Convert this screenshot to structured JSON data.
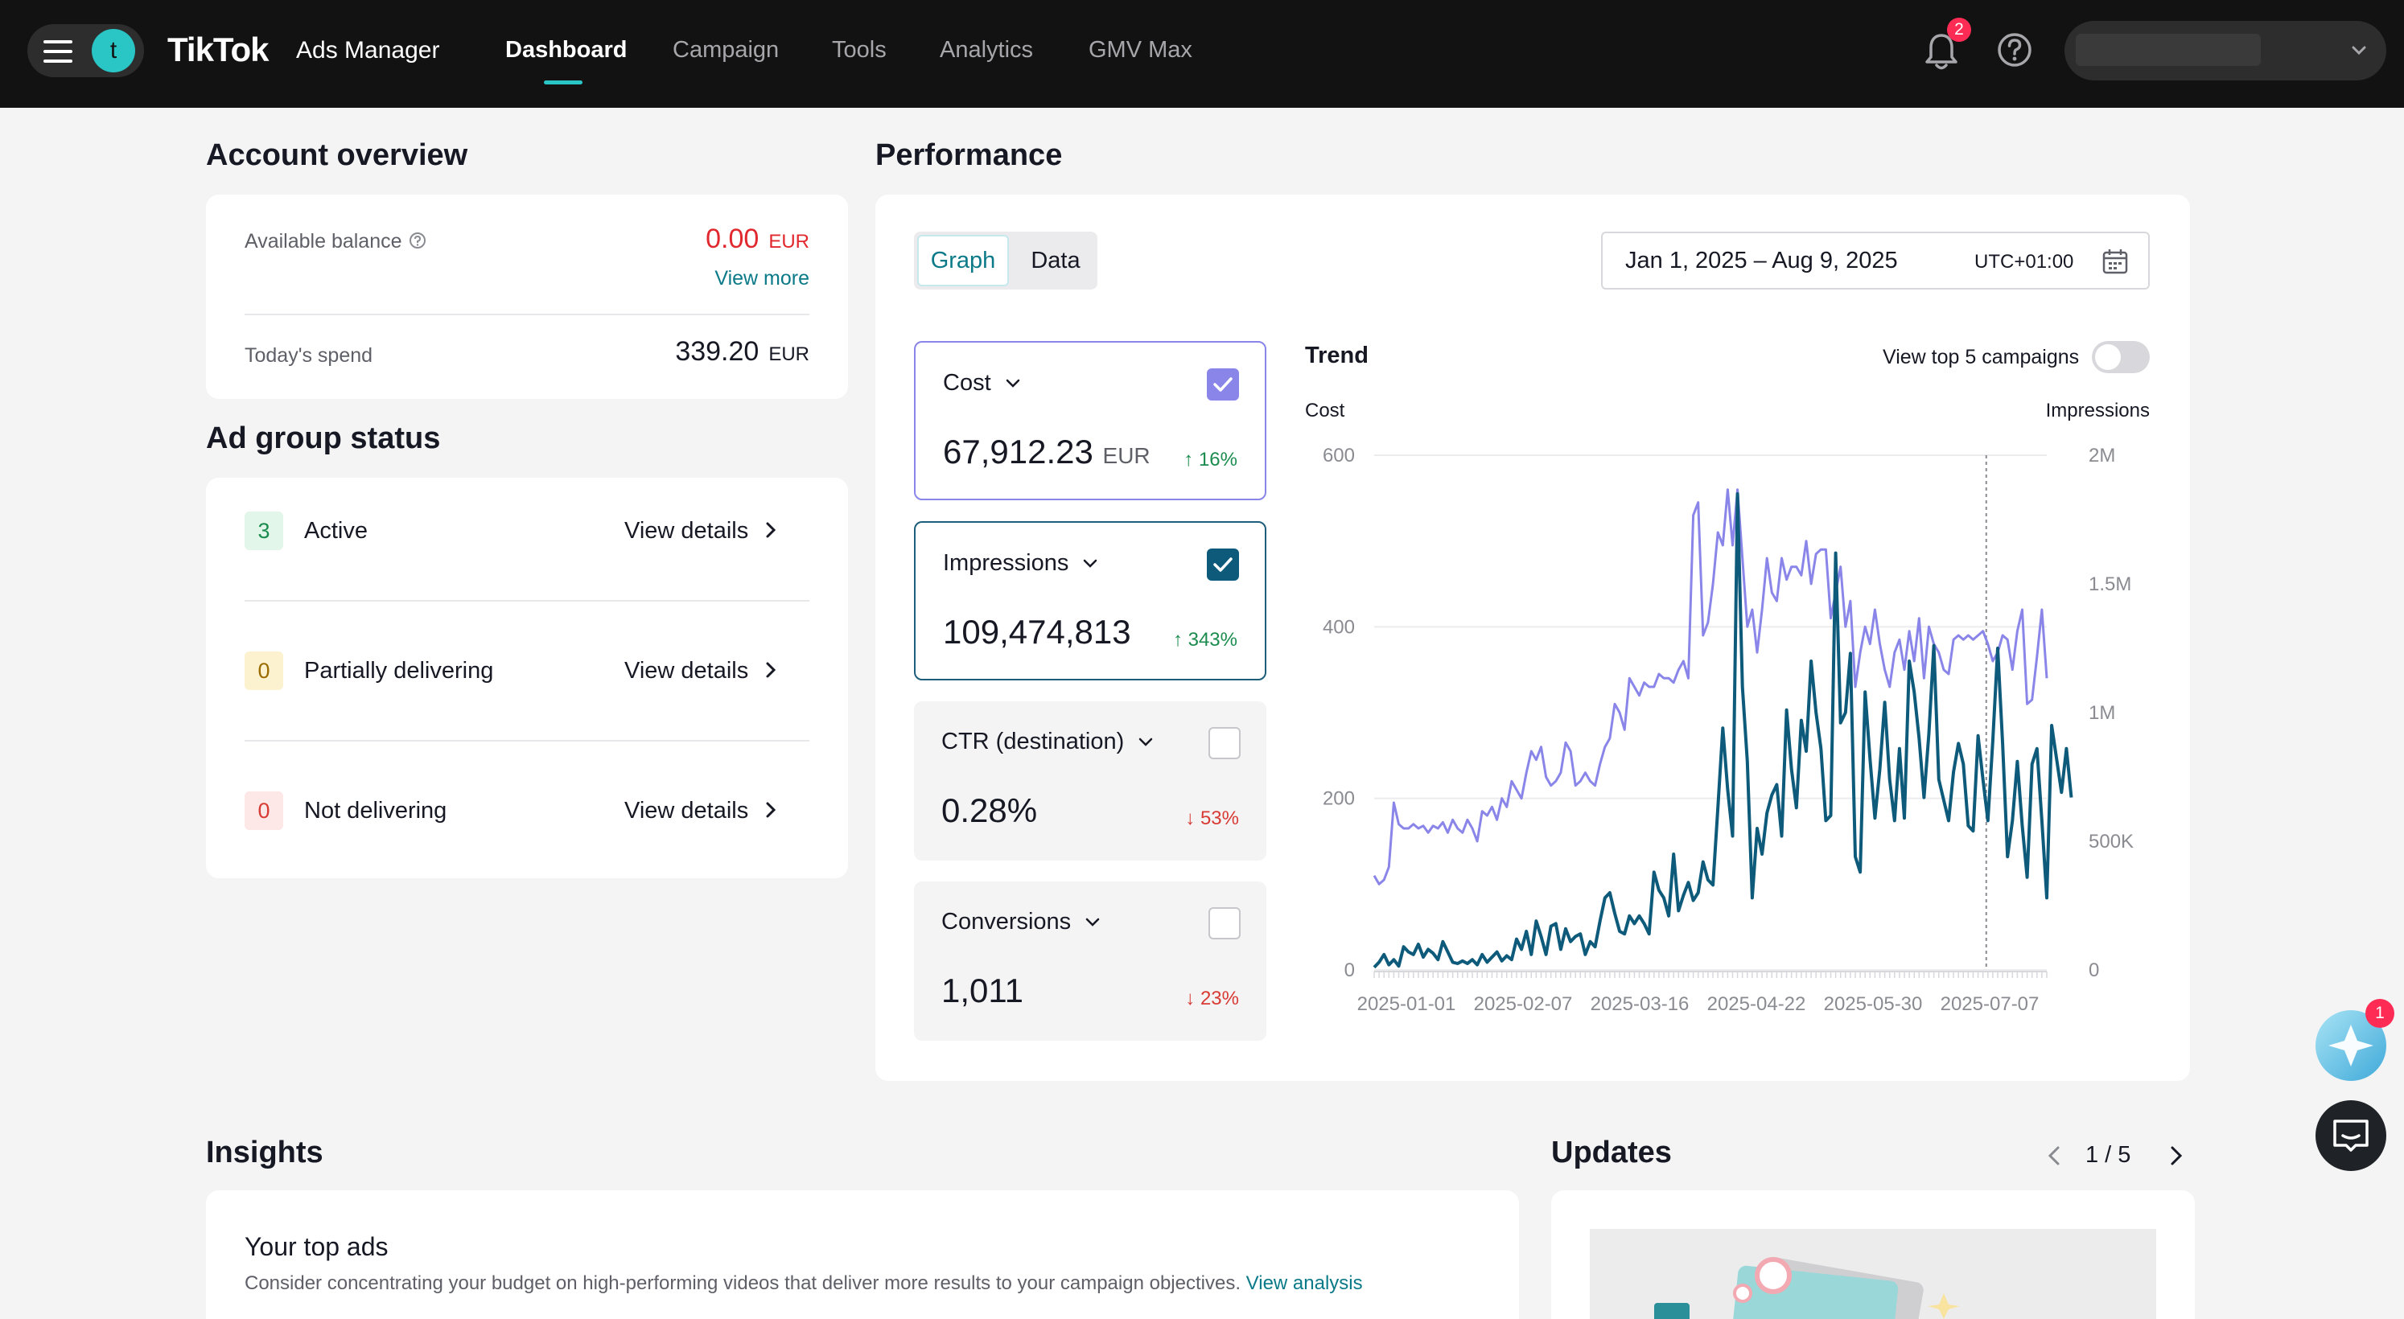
{
  "nav": {
    "avatar_letter": "t",
    "logo": "TikTok",
    "logo_sub": "Ads Manager",
    "items": [
      "Dashboard",
      "Campaign",
      "Tools",
      "Analytics",
      "GMV Max"
    ],
    "notification_count": "2"
  },
  "account_overview": {
    "title": "Account overview",
    "balance_label": "Available balance",
    "balance_value": "0.00",
    "balance_currency": "EUR",
    "view_more": "View more",
    "spend_label": "Today's spend",
    "spend_value": "339.20",
    "spend_currency": "EUR"
  },
  "ad_group_status": {
    "title": "Ad group status",
    "items": [
      {
        "count": "3",
        "label": "Active",
        "link": "View details"
      },
      {
        "count": "0",
        "label": "Partially delivering",
        "link": "View details"
      },
      {
        "count": "0",
        "label": "Not delivering",
        "link": "View details"
      }
    ]
  },
  "performance": {
    "title": "Performance",
    "tab_graph": "Graph",
    "tab_data": "Data",
    "date_range": "Jan 1, 2025 – Aug 9, 2025",
    "timezone": "UTC+01:00",
    "metrics": [
      {
        "name": "Cost",
        "value": "67,912.23",
        "unit": "EUR",
        "delta": "16%",
        "direction": "up",
        "checked": true
      },
      {
        "name": "Impressions",
        "value": "109,474,813",
        "unit": "",
        "delta": "343%",
        "direction": "up",
        "checked": true
      },
      {
        "name": "CTR (destination)",
        "value": "0.28%",
        "unit": "",
        "delta": "53%",
        "direction": "down",
        "checked": false
      },
      {
        "name": "Conversions",
        "value": "1,011",
        "unit": "",
        "delta": "23%",
        "direction": "down",
        "checked": false
      }
    ],
    "trend_title": "Trend",
    "top5_label": "View top 5 campaigns"
  },
  "chart_data": {
    "type": "line",
    "title": "Trend",
    "ylabel_left": "Cost",
    "ylabel_right": "Impressions",
    "ylim_left": [
      0,
      600
    ],
    "ylim_right": [
      0,
      2000000
    ],
    "left_ticks": [
      "0",
      "200",
      "400",
      "600"
    ],
    "right_ticks": [
      "0",
      "500K",
      "1M",
      "1.5M",
      "2M"
    ],
    "x_ticks": [
      "2025-01-01",
      "2025-02-07",
      "2025-03-16",
      "2025-04-22",
      "2025-05-30",
      "2025-07-07"
    ],
    "series": [
      {
        "name": "Cost",
        "axis": "left",
        "color": "#8a85e8",
        "values": [
          110,
          100,
          105,
          120,
          195,
          170,
          165,
          165,
          170,
          165,
          168,
          160,
          168,
          165,
          172,
          160,
          175,
          165,
          160,
          175,
          165,
          150,
          185,
          180,
          190,
          175,
          200,
          190,
          220,
          210,
          200,
          230,
          255,
          245,
          260,
          225,
          215,
          220,
          230,
          265,
          255,
          215,
          220,
          230,
          220,
          215,
          240,
          260,
          270,
          310,
          300,
          280,
          340,
          330,
          320,
          335,
          330,
          330,
          345,
          340,
          340,
          335,
          350,
          360,
          340,
          530,
          545,
          390,
          405,
          450,
          510,
          495,
          560,
          495,
          560,
          480,
          400,
          420,
          370,
          420,
          480,
          440,
          430,
          480,
          455,
          470,
          470,
          460,
          500,
          450,
          485,
          490,
          490,
          410,
          440,
          470,
          400,
          430,
          330,
          370,
          400,
          380,
          420,
          380,
          350,
          330,
          370,
          385,
          350,
          395,
          360,
          410,
          340,
          400,
          380,
          370,
          350,
          345,
          385,
          390,
          385,
          390,
          385,
          390,
          395,
          380,
          360,
          370,
          390,
          385,
          350,
          395,
          420,
          310,
          315,
          365,
          420,
          340
        ]
      },
      {
        "name": "Impressions",
        "axis": "right",
        "color": "#0e5a7a",
        "values": [
          10000,
          30000,
          60000,
          20000,
          40000,
          15000,
          90000,
          70000,
          60000,
          100000,
          50000,
          80000,
          65000,
          40000,
          110000,
          70000,
          30000,
          25000,
          35000,
          25000,
          40000,
          20000,
          60000,
          30000,
          50000,
          70000,
          35000,
          55000,
          40000,
          120000,
          80000,
          150000,
          60000,
          190000,
          130000,
          60000,
          170000,
          180000,
          80000,
          160000,
          110000,
          130000,
          140000,
          60000,
          110000,
          90000,
          190000,
          280000,
          300000,
          220000,
          150000,
          140000,
          210000,
          180000,
          210000,
          180000,
          140000,
          380000,
          310000,
          280000,
          210000,
          450000,
          230000,
          290000,
          340000,
          270000,
          300000,
          420000,
          350000,
          330000,
          630000,
          940000,
          700000,
          520000,
          1850000,
          1100000,
          810000,
          280000,
          550000,
          450000,
          610000,
          680000,
          720000,
          520000,
          1010000,
          780000,
          630000,
          970000,
          850000,
          1200000,
          1000000,
          860000,
          580000,
          600000,
          1620000,
          960000,
          1000000,
          1230000,
          440000,
          380000,
          1080000,
          820000,
          590000,
          780000,
          1040000,
          740000,
          580000,
          860000,
          590000,
          1200000,
          1080000,
          900000,
          670000,
          920000,
          1260000,
          740000,
          660000,
          580000,
          770000,
          880000,
          800000,
          560000,
          540000,
          910000,
          740000,
          580000,
          890000,
          1250000,
          880000,
          440000,
          580000,
          810000,
          560000,
          360000,
          800000,
          860000,
          580000,
          280000,
          950000,
          820000,
          690000,
          860000,
          670000
        ]
      }
    ]
  },
  "insights": {
    "title": "Insights",
    "card_title": "Your top ads",
    "card_text": "Consider concentrating your budget on high-performing videos that deliver more results to your campaign objectives.",
    "card_link": "View analysis"
  },
  "updates": {
    "title": "Updates",
    "pager": "1 / 5"
  },
  "floating": {
    "assistant_badge": "1"
  }
}
